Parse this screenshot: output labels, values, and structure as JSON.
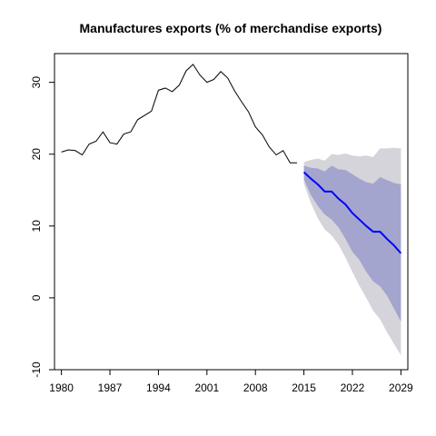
{
  "chart_data": {
    "type": "line",
    "title": "Manufactures exports (% of merchandise exports)",
    "xlabel": "",
    "ylabel": "",
    "xlim": [
      1979,
      2030
    ],
    "ylim": [
      -10,
      34
    ],
    "x_ticks": [
      1980,
      1987,
      1994,
      2001,
      2008,
      2015,
      2022,
      2029
    ],
    "y_ticks": [
      -10,
      0,
      10,
      20,
      30
    ],
    "grid": false,
    "legend": "none",
    "colors": {
      "history": "#000000",
      "forecast": "#0000ff",
      "band_80": "#a3a5cf",
      "band_95": "#d4d4da"
    },
    "series": [
      {
        "role": "history",
        "x": [
          1980,
          1981,
          1982,
          1983,
          1984,
          1985,
          1986,
          1987,
          1988,
          1989,
          1990,
          1991,
          1992,
          1993,
          1994,
          1995,
          1996,
          1997,
          1998,
          1999,
          2000,
          2001,
          2002,
          2003,
          2004,
          2005,
          2006,
          2007,
          2008,
          2009,
          2010,
          2011,
          2012,
          2013,
          2014
        ],
        "values": [
          20.3,
          20.6,
          20.5,
          19.9,
          21.4,
          21.8,
          23.1,
          21.6,
          21.4,
          22.8,
          23.1,
          24.8,
          25.4,
          26.0,
          28.9,
          29.2,
          28.7,
          29.6,
          31.6,
          32.5,
          31.0,
          30.0,
          30.4,
          31.5,
          30.6,
          28.8,
          27.3,
          25.9,
          23.8,
          22.7,
          21.0,
          19.9,
          20.5,
          18.8,
          18.8
        ]
      },
      {
        "role": "forecast",
        "x": [
          2015,
          2016,
          2017,
          2018,
          2019,
          2020,
          2021,
          2022,
          2023,
          2024,
          2025,
          2026,
          2027,
          2028,
          2029
        ],
        "values": [
          17.5,
          16.6,
          15.8,
          14.8,
          14.8,
          13.8,
          13.0,
          11.8,
          10.9,
          10.0,
          9.2,
          9.2,
          8.2,
          7.3,
          6.2
        ],
        "lo80": [
          16.5,
          14.3,
          12.8,
          11.6,
          10.9,
          9.8,
          8.2,
          6.4,
          5.3,
          3.6,
          2.3,
          1.6,
          0.3,
          -1.5,
          -3.3
        ],
        "hi80": [
          18.4,
          18.1,
          18.0,
          17.6,
          18.4,
          17.9,
          17.8,
          17.2,
          16.6,
          16.1,
          15.9,
          16.8,
          16.4,
          16.0,
          15.8
        ],
        "lo95": [
          15.9,
          13.2,
          11.1,
          9.5,
          8.7,
          7.4,
          5.6,
          3.6,
          1.7,
          0.0,
          -1.8,
          -3.0,
          -4.8,
          -6.4,
          -8.0
        ],
        "hi95": [
          18.9,
          19.2,
          19.4,
          19.1,
          20.0,
          19.9,
          20.1,
          19.8,
          19.7,
          19.8,
          19.6,
          20.8,
          20.8,
          20.9,
          20.8
        ]
      }
    ]
  }
}
